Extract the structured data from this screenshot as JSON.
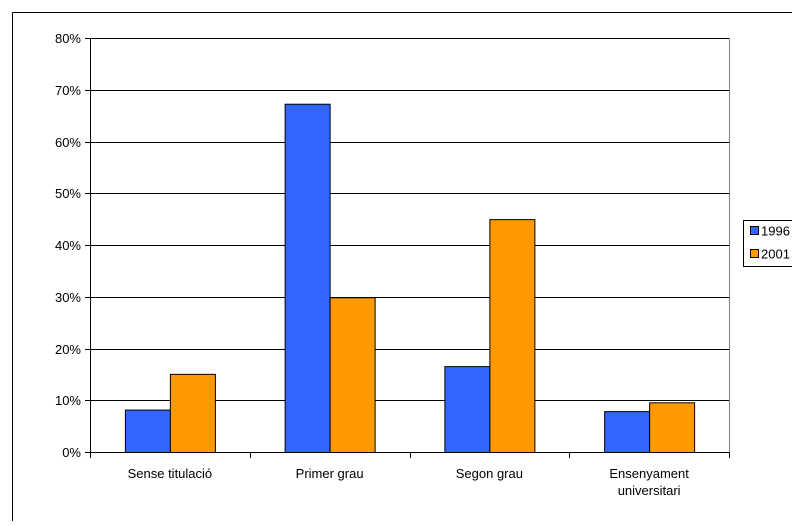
{
  "chart_data": {
    "type": "bar",
    "title": "",
    "xlabel": "",
    "ylabel": "",
    "categories": [
      [
        "Sense titulació"
      ],
      [
        "Primer grau"
      ],
      [
        "Segon grau"
      ],
      [
        "Ensenyament",
        "universitari"
      ]
    ],
    "series": [
      {
        "name": "1996",
        "color": "#3366FF",
        "values": [
          8.2,
          67.3,
          16.6,
          7.9
        ]
      },
      {
        "name": "2001",
        "color": "#FF9900",
        "values": [
          15.1,
          29.9,
          45.0,
          9.6
        ]
      }
    ],
    "ylim": [
      0,
      80
    ],
    "yticks": [
      0,
      10,
      20,
      30,
      40,
      50,
      60,
      70,
      80
    ],
    "ytick_labels": [
      "0%",
      "10%",
      "20%",
      "30%",
      "40%",
      "50%",
      "60%",
      "70%",
      "80%"
    ],
    "grid": true,
    "legend_position": "right (clipped at edge)",
    "legend_labels": [
      "1996",
      "2001"
    ]
  }
}
